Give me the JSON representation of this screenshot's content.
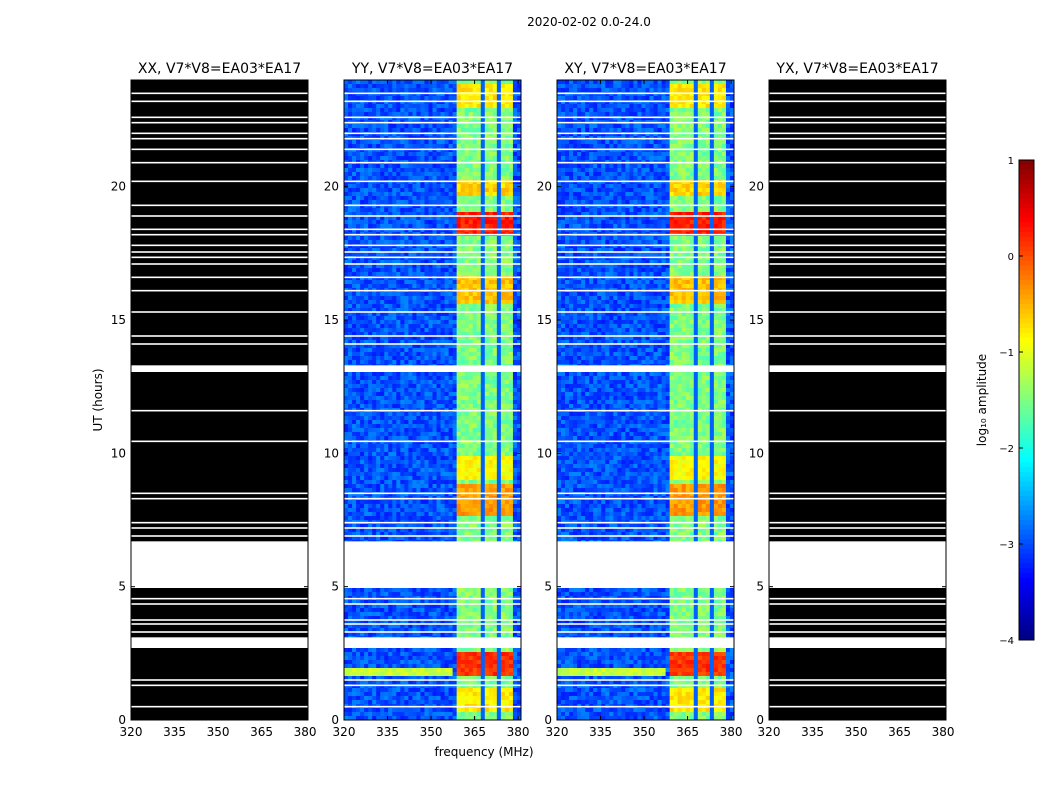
{
  "figure": {
    "suptitle": "2020-02-02 0.0-24.0"
  },
  "chart_data": {
    "type": "heatmap",
    "ylabel": "UT (hours)",
    "xlabel": "frequency (MHz)",
    "xlim": [
      320,
      381
    ],
    "ylim": [
      0,
      24
    ],
    "xticks": [
      320,
      335,
      350,
      365,
      380
    ],
    "xtick_labels": [
      "320",
      "335",
      "350",
      "365",
      "380"
    ],
    "yticks": [
      0,
      5,
      10,
      15,
      20
    ],
    "ytick_labels": [
      "0",
      "5",
      "10",
      "15",
      "20"
    ],
    "panels": [
      {
        "title": "XX, V7*V8=EA03*EA17",
        "style": "masked"
      },
      {
        "title": "YY, V7*V8=EA03*EA17",
        "style": "spectrum"
      },
      {
        "title": "XY, V7*V8=EA03*EA17",
        "style": "spectrum"
      },
      {
        "title": "YX, V7*V8=EA03*EA17",
        "style": "masked"
      }
    ],
    "flag_bands_hours": [
      [
        2.7,
        3.1
      ],
      [
        4.95,
        6.7
      ],
      [
        13.05,
        13.3
      ]
    ],
    "flag_lines_hours": [
      0.5,
      1.3,
      1.5,
      3.3,
      3.6,
      3.75,
      4.35,
      4.55,
      6.9,
      7.2,
      7.4,
      8.3,
      8.5,
      10.45,
      11.6,
      14.1,
      14.4,
      15.3,
      16.1,
      16.6,
      17.1,
      17.35,
      17.55,
      17.8,
      18.2,
      18.4,
      18.9,
      19.3,
      20.2,
      20.9,
      21.4,
      21.8,
      22.0,
      22.4,
      22.6,
      23.2,
      23.5
    ],
    "rfi_channels_mhz": [
      362,
      363,
      364,
      365,
      366,
      367,
      368,
      369,
      370,
      371,
      372,
      373,
      374,
      375,
      376,
      377,
      378,
      379
    ],
    "bright_blocks": [
      {
        "t0": 0.3,
        "t1": 1.2,
        "level": -0.6
      },
      {
        "t0": 1.6,
        "t1": 2.6,
        "level": 0.3
      },
      {
        "t0": 7.7,
        "t1": 8.9,
        "level": -0.2
      },
      {
        "t0": 9.0,
        "t1": 9.9,
        "level": -0.7
      },
      {
        "t0": 15.6,
        "t1": 16.6,
        "level": -0.4
      },
      {
        "t0": 18.1,
        "t1": 19.1,
        "level": 0.4
      },
      {
        "t0": 19.6,
        "t1": 20.3,
        "level": -0.5
      },
      {
        "t0": 23.0,
        "t1": 23.9,
        "level": -0.6
      }
    ],
    "colorbar": {
      "label": "log₁₀ amplitude",
      "range": [
        -4,
        1
      ],
      "ticks": [
        1,
        0,
        -1,
        -2,
        -3,
        -4
      ],
      "tick_labels": [
        "1",
        "0",
        "−1",
        "−2",
        "−3",
        "−4"
      ],
      "cmap": "jet"
    }
  }
}
